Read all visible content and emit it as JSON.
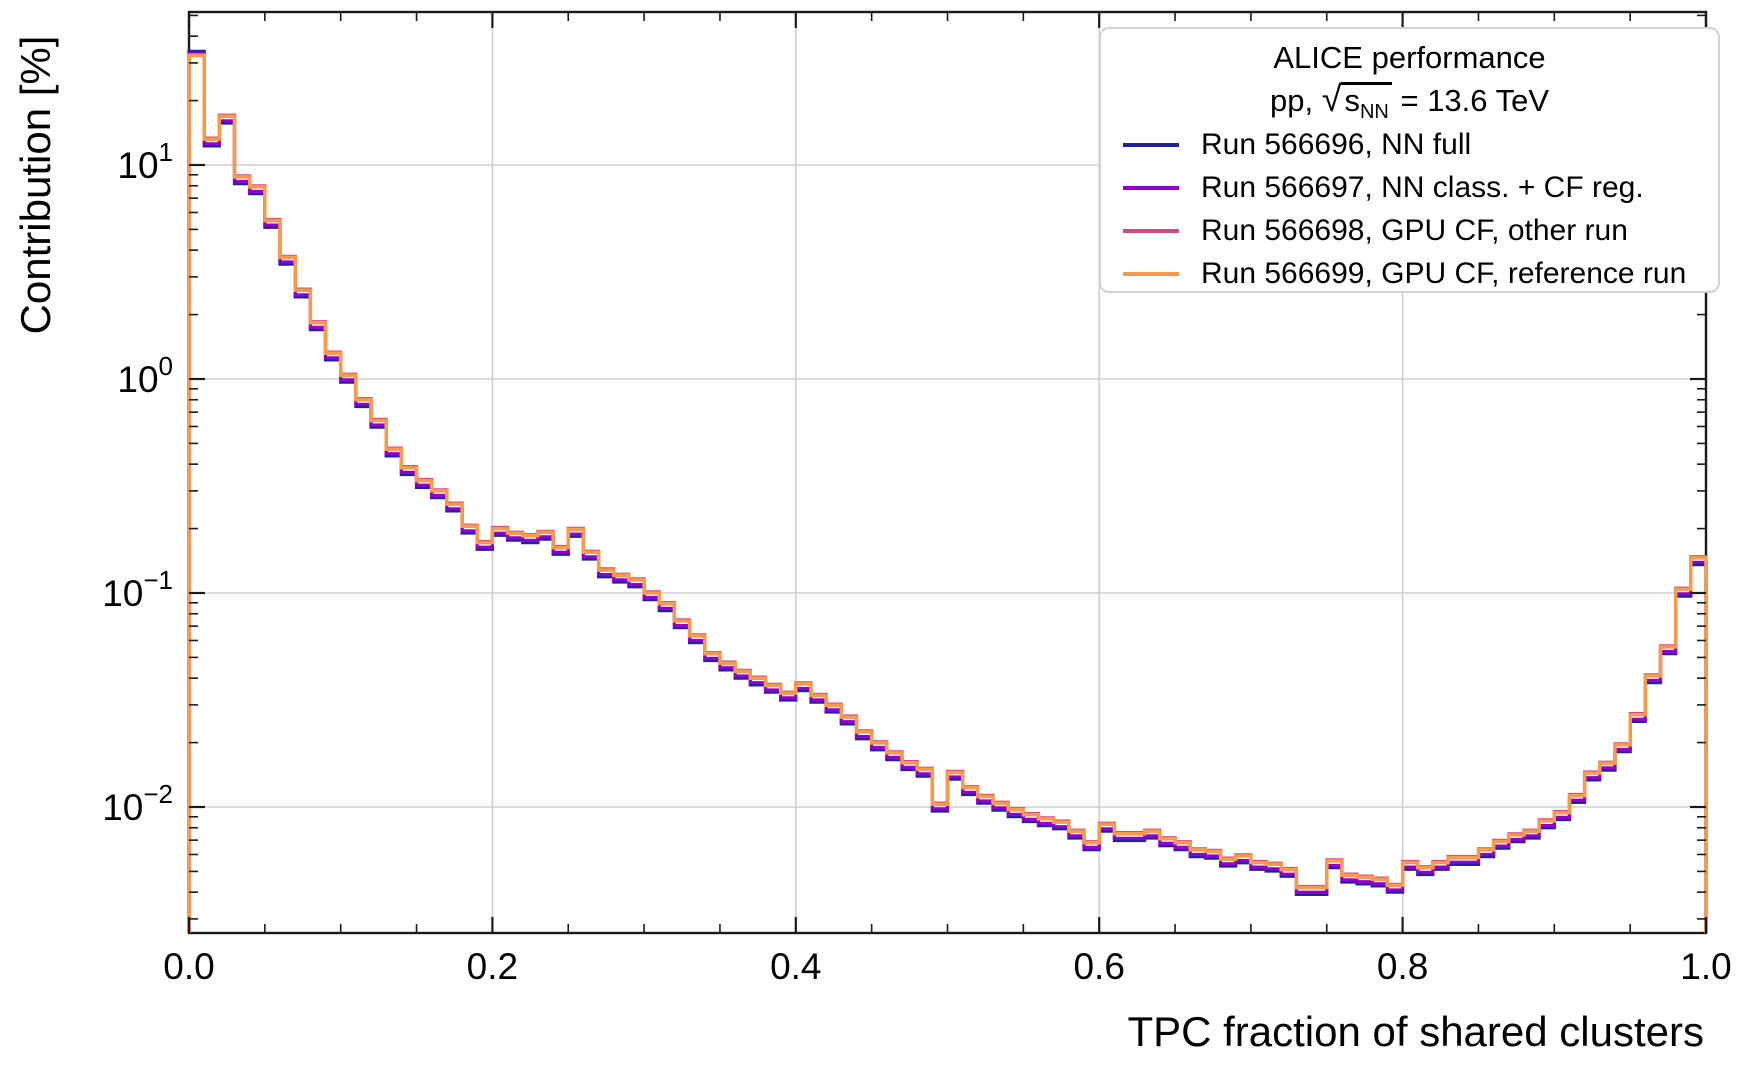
{
  "page": {
    "background": "#ffffff"
  },
  "chart_data": {
    "type": "line",
    "style": "step-histogram-outline",
    "yscale": "log",
    "grid": true,
    "title": "",
    "xlabel": "TPC fraction of shared clusters",
    "ylabel": "Contribution [%]",
    "xlim": [
      0,
      1
    ],
    "ylim_percent": [
      0.0026,
      52
    ],
    "bin_width": 0.01,
    "x_ticks": [
      {
        "label": "0.0",
        "value": 0.0
      },
      {
        "label": "0.2",
        "value": 0.2
      },
      {
        "label": "0.4",
        "value": 0.4
      },
      {
        "label": "0.6",
        "value": 0.6
      },
      {
        "label": "0.8",
        "value": 0.8
      },
      {
        "label": "1.0",
        "value": 1.0
      }
    ],
    "x_minor_step": 0.05,
    "y_ticks": [
      {
        "base": "10",
        "exp": "1",
        "value": 10
      },
      {
        "base": "10",
        "exp": "0",
        "value": 1
      },
      {
        "base": "10",
        "exp": "−1",
        "value": 0.1
      },
      {
        "base": "10",
        "exp": "−2",
        "value": 0.01
      }
    ],
    "baseline_values_percent": [
      32.5,
      13.2,
      16.9,
      8.8,
      7.9,
      5.5,
      3.7,
      2.6,
      1.83,
      1.32,
      1.04,
      0.8,
      0.64,
      0.47,
      0.385,
      0.335,
      0.3,
      0.26,
      0.205,
      0.172,
      0.2,
      0.19,
      0.185,
      0.192,
      0.163,
      0.198,
      0.155,
      0.128,
      0.121,
      0.115,
      0.1,
      0.089,
      0.074,
      0.063,
      0.052,
      0.047,
      0.043,
      0.04,
      0.037,
      0.034,
      0.0376,
      0.0332,
      0.0299,
      0.0263,
      0.0224,
      0.0199,
      0.0179,
      0.0161,
      0.015,
      0.0103,
      0.0145,
      0.0123,
      0.0112,
      0.0104,
      0.0097,
      0.0092,
      0.0088,
      0.0085,
      0.0077,
      0.0068,
      0.0083,
      0.0075,
      0.0075,
      0.0077,
      0.0071,
      0.0068,
      0.0063,
      0.0062,
      0.0057,
      0.0059,
      0.0055,
      0.0054,
      0.0051,
      0.0042,
      0.0042,
      0.0056,
      0.0048,
      0.0047,
      0.0046,
      0.0043,
      0.0055,
      0.0052,
      0.0055,
      0.0058,
      0.0058,
      0.0063,
      0.0069,
      0.0074,
      0.0077,
      0.0086,
      0.0094,
      0.0113,
      0.0144,
      0.016,
      0.0195,
      0.027,
      0.041,
      0.056,
      0.104,
      0.146
    ],
    "series": [
      {
        "name": "Run 566696, NN full",
        "color": "#22229e",
        "scale": 0.93,
        "first_bin_percent": 34.0,
        "width": 3.2
      },
      {
        "name": "Run 566697, NN class. + CF reg.",
        "color": "#9100cc",
        "scale": 0.952,
        "first_bin_percent": 33.2,
        "width": 3.2
      },
      {
        "name": "Run 566698, GPU CF, other run",
        "color": "#d6487e",
        "scale": 1.012,
        "first_bin_percent": 32.8,
        "width": 3.2
      },
      {
        "name": "Run 566699, GPU CF, reference run",
        "color": "#f89a4b",
        "scale": 1.0,
        "first_bin_percent": 32.5,
        "width": 3.5
      }
    ],
    "legend": {
      "position": "upper-right",
      "title": "ALICE performance",
      "subtitle_prefix": "pp,  ",
      "sqrt_symbol": "√",
      "sqrt_base": "s",
      "sqrt_subscript": "NN",
      "subtitle_suffix": " = 13.6 TeV"
    },
    "colors": {
      "grid": "#cfcfcf",
      "spine": "#1a1a1a",
      "text": "#000000"
    }
  }
}
